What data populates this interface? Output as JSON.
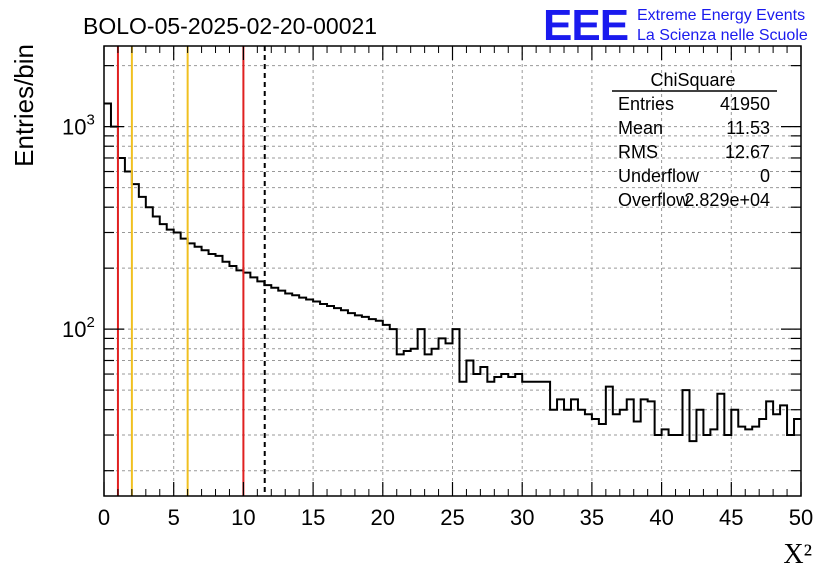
{
  "chart_data": {
    "type": "histogram",
    "title": "BOLO-05-2025-02-20-00021",
    "xlabel": "X²",
    "ylabel": "Entries/bin",
    "xlim": [
      0,
      50
    ],
    "ylim_log": [
      15,
      2500
    ],
    "yscale": "log",
    "grid": true,
    "x_ticks": [
      "0",
      "5",
      "10",
      "15",
      "20",
      "25",
      "30",
      "35",
      "40",
      "45",
      "50"
    ],
    "y_ticks": [
      {
        "base": "10",
        "exp": "3",
        "value": 1000
      },
      {
        "base": "10",
        "exp": "2",
        "value": 100
      }
    ],
    "bin_width": 0.5,
    "counts": [
      1300,
      1000,
      700,
      600,
      520,
      450,
      400,
      360,
      330,
      310,
      300,
      280,
      265,
      255,
      245,
      235,
      230,
      215,
      205,
      195,
      190,
      180,
      172,
      165,
      160,
      155,
      150,
      147,
      143,
      140,
      137,
      133,
      130,
      127,
      124,
      120,
      117,
      115,
      112,
      110,
      105,
      100,
      75,
      78,
      80,
      100,
      75,
      80,
      90,
      85,
      100,
      55,
      70,
      60,
      65,
      55,
      58,
      60,
      58,
      60,
      55,
      55,
      55,
      55,
      40,
      45,
      40,
      45,
      40,
      38,
      36,
      34,
      52,
      38,
      40,
      45,
      35,
      45,
      44,
      30,
      32,
      30,
      30,
      50,
      28,
      40,
      30,
      32,
      48,
      30,
      40,
      33,
      32,
      33,
      36,
      44,
      38,
      42,
      30,
      36
    ],
    "vertical_lines": [
      {
        "x": 1,
        "color": "#e02020",
        "style": "solid"
      },
      {
        "x": 2,
        "color": "#f0c020",
        "style": "solid"
      },
      {
        "x": 6,
        "color": "#f0c020",
        "style": "solid"
      },
      {
        "x": 10,
        "color": "#e02020",
        "style": "solid"
      },
      {
        "x": 11.53,
        "color": "#000000",
        "style": "dashed"
      }
    ],
    "stats_box": {
      "title": "ChiSquare",
      "rows": [
        {
          "label": "Entries",
          "value": "41950"
        },
        {
          "label": "Mean",
          "value": "11.53"
        },
        {
          "label": "RMS",
          "value": "12.67"
        },
        {
          "label": "Underflow",
          "value": "0"
        },
        {
          "label": "Overflow",
          "value": "2.829e+04"
        }
      ]
    }
  },
  "logo": {
    "mark": "EEE",
    "line1": "Extreme Energy Events",
    "line2": "La Scienza nelle Scuole",
    "color": "#1a1aee"
  }
}
